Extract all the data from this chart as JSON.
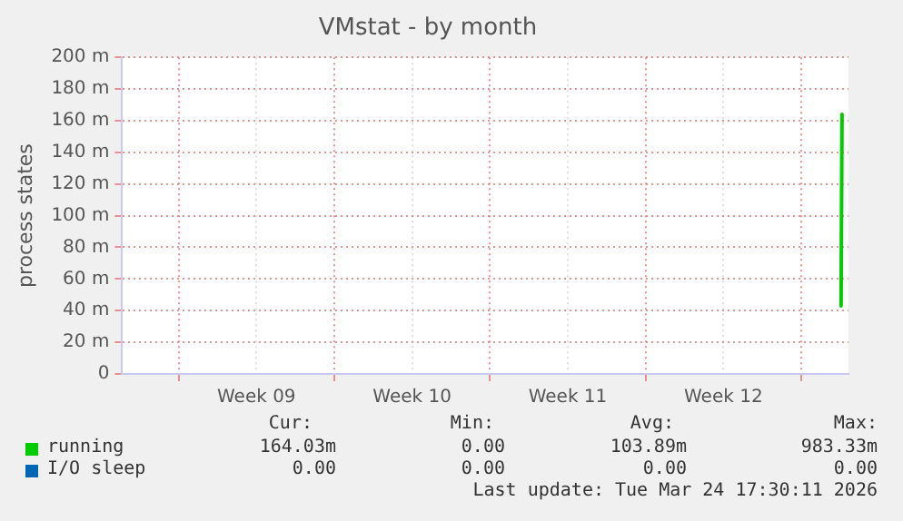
{
  "chart_data": {
    "type": "line",
    "title": "VMstat - by month",
    "ylabel": "process states",
    "x": [
      "2026-03-24T10:00",
      "2026-03-24T11:00"
    ],
    "series": [
      {
        "name": "running",
        "color": "#00cc00",
        "values": [
          43,
          164
        ]
      },
      {
        "name": "I/O sleep",
        "color": "#0066b3",
        "values": [
          null,
          null
        ]
      }
    ],
    "xlim": [
      "2026-02-20T02:00",
      "2026-03-24T18:00"
    ],
    "xticks": [
      {
        "value": "2026-02-22T15:00",
        "label": null
      },
      {
        "value": "2026-02-26T03:00",
        "label": "Week 09"
      },
      {
        "value": "2026-03-01T15:00",
        "label": null
      },
      {
        "value": "2026-03-05T03:00",
        "label": "Week 10"
      },
      {
        "value": "2026-03-08T15:00",
        "label": null
      },
      {
        "value": "2026-03-12T03:00",
        "label": "Week 11"
      },
      {
        "value": "2026-03-15T15:00",
        "label": null
      },
      {
        "value": "2026-03-19T03:00",
        "label": "Week 12"
      },
      {
        "value": "2026-03-22T15:00",
        "label": null
      }
    ],
    "ylim": [
      0,
      200
    ],
    "yticks": [
      0,
      {
        "value": 20,
        "label": "20 m"
      },
      {
        "value": 40,
        "label": "40 m"
      },
      {
        "value": 60,
        "label": "60 m"
      },
      {
        "value": 80,
        "label": "80 m"
      },
      {
        "value": 100,
        "label": "100 m"
      },
      {
        "value": 120,
        "label": "120 m"
      },
      {
        "value": 140,
        "label": "140 m"
      },
      {
        "value": 160,
        "label": "160 m"
      },
      {
        "value": 180,
        "label": "180 m"
      },
      {
        "value": 200,
        "label": "200 m"
      }
    ],
    "grid": true,
    "legend": "bottom",
    "marker": "none",
    "line_style": "solid",
    "annotations": [
      "Cur:",
      "Min:",
      "Avg:",
      "Max:",
      "164.03m",
      "0.00",
      "103.89m",
      "983.33m",
      "0.00",
      "0.00",
      "0.00",
      "0.00",
      "Last update: Tue Mar 24 17:30:11 2026"
    ]
  }
}
